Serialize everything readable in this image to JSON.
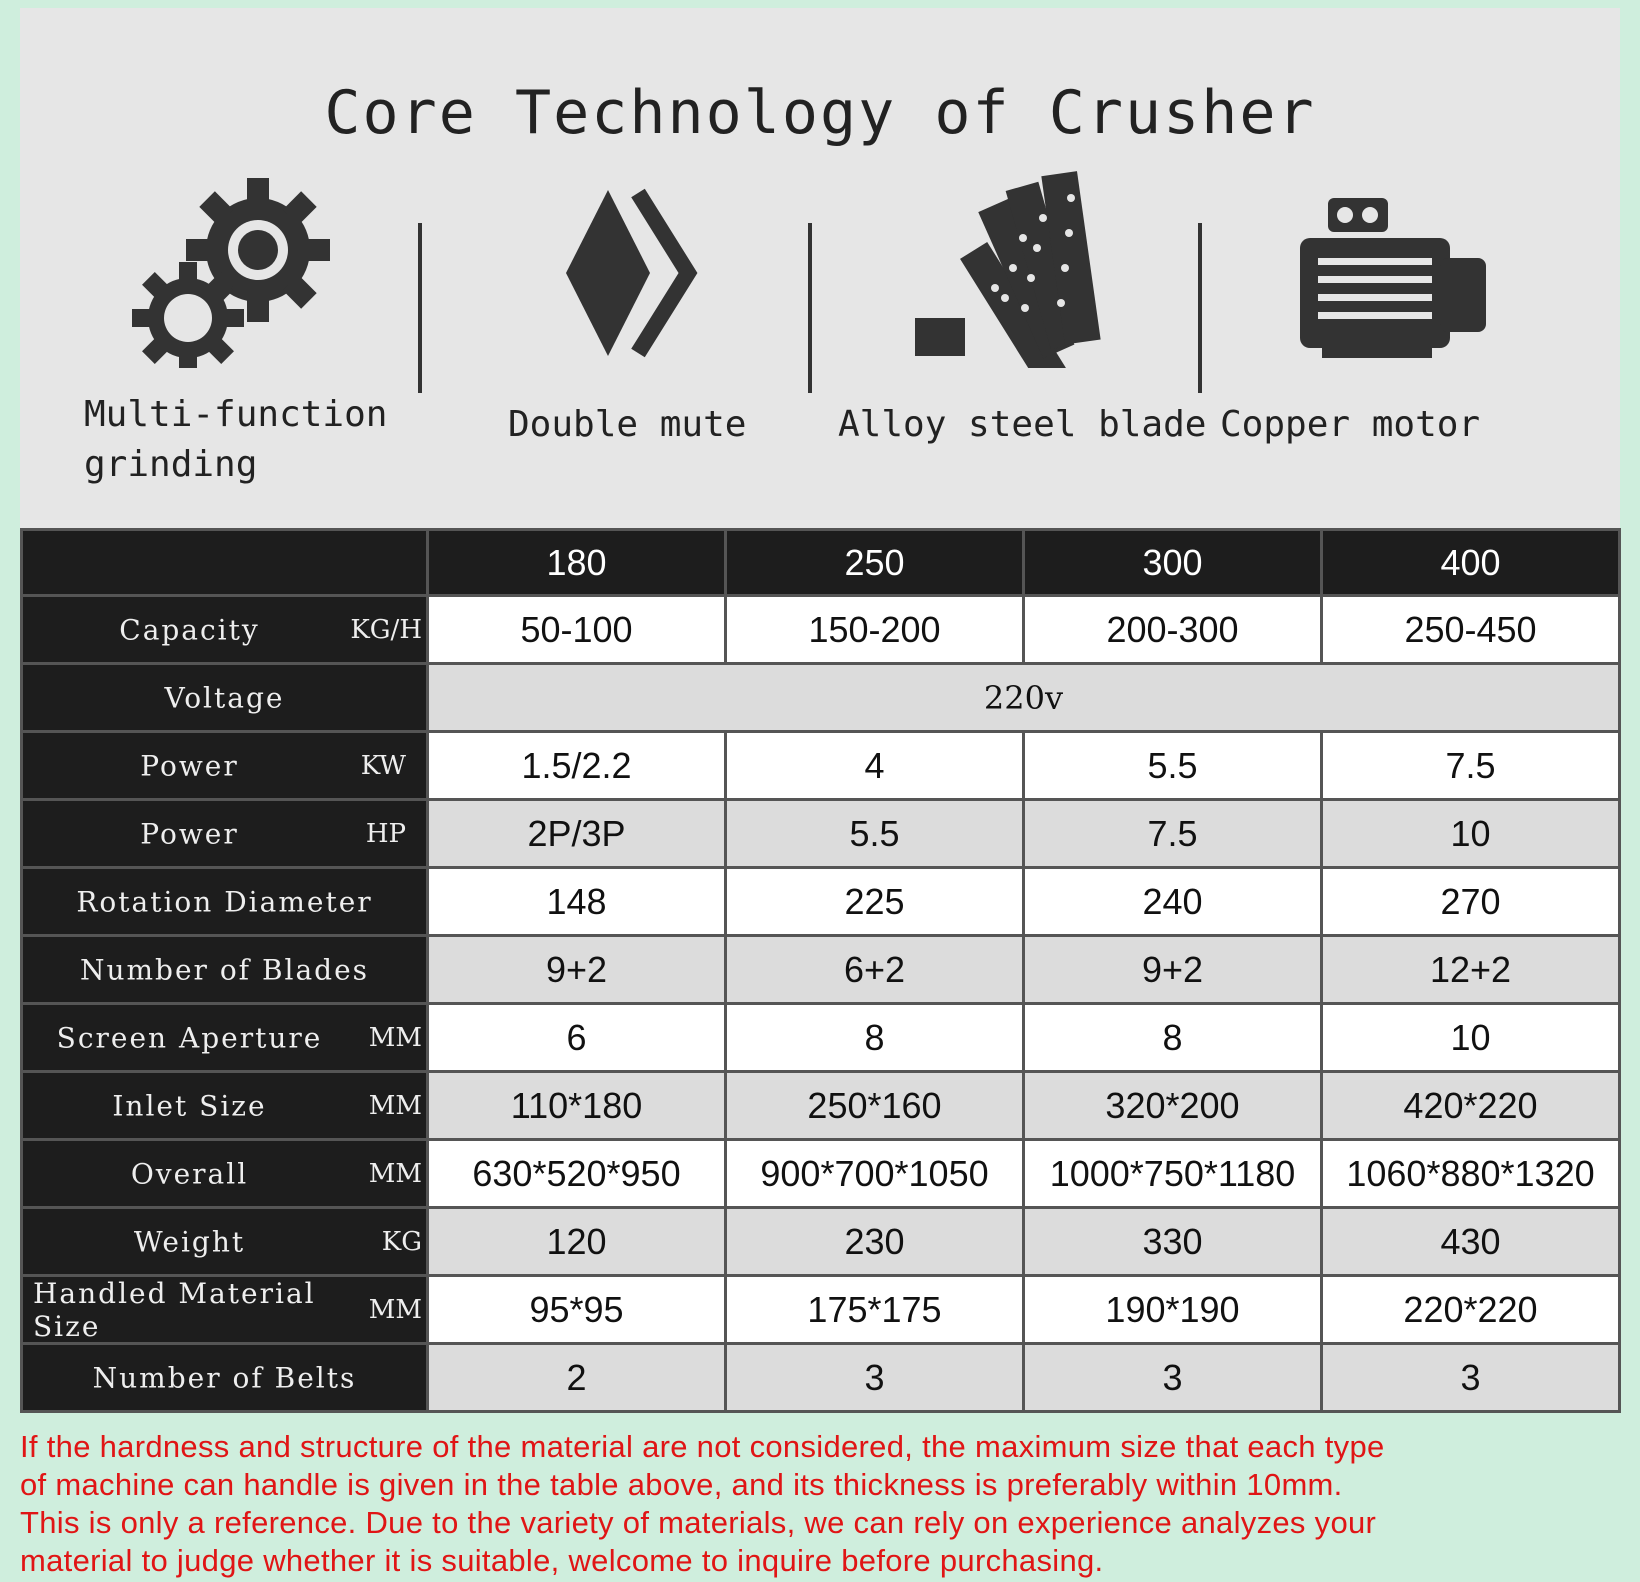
{
  "title": "Core Technology of Crusher",
  "features": [
    {
      "label": "Multi-function\ngrinding",
      "icon": "gears-icon"
    },
    {
      "label": "Double mute",
      "icon": "double-mute-icon"
    },
    {
      "label": "Alloy steel blade",
      "icon": "blades-icon"
    },
    {
      "label": "Copper motor",
      "icon": "motor-icon"
    }
  ],
  "table": {
    "models": [
      "180",
      "250",
      "300",
      "400"
    ],
    "rows": [
      {
        "name": "Capacity",
        "unit": "KG/H",
        "values": [
          "50-100",
          "150-200",
          "200-300",
          "250-450"
        ]
      },
      {
        "name": "Voltage",
        "unit": "",
        "merged": "220v"
      },
      {
        "name": "Power",
        "unit": "KW",
        "values": [
          "1.5/2.2",
          "4",
          "5.5",
          "7.5"
        ]
      },
      {
        "name": "Power",
        "unit": "HP",
        "values": [
          "2P/3P",
          "5.5",
          "7.5",
          "10"
        ]
      },
      {
        "name": "Rotation Diameter",
        "unit": "",
        "values": [
          "148",
          "225",
          "240",
          "270"
        ]
      },
      {
        "name": "Number of Blades",
        "unit": "",
        "values": [
          "9+2",
          "6+2",
          "9+2",
          "12+2"
        ]
      },
      {
        "name": "Screen Aperture",
        "unit": "MM",
        "values": [
          "6",
          "8",
          "8",
          "10"
        ]
      },
      {
        "name": "Inlet Size",
        "unit": "MM",
        "values": [
          "110*180",
          "250*160",
          "320*200",
          "420*220"
        ]
      },
      {
        "name": "Overall",
        "unit": "MM",
        "values": [
          "630*520*950",
          "900*700*1050",
          "1000*750*1180",
          "1060*880*1320"
        ]
      },
      {
        "name": "Weight",
        "unit": "KG",
        "values": [
          "120",
          "230",
          "330",
          "430"
        ]
      },
      {
        "name": "Handled Material Size",
        "unit": "MM",
        "values": [
          "95*95",
          "175*175",
          "190*190",
          "220*220"
        ]
      },
      {
        "name": "Number of Belts",
        "unit": "",
        "values": [
          "2",
          "3",
          "3",
          "3"
        ]
      }
    ]
  },
  "note": [
    "If the hardness and structure of the material are not considered, the maximum size that each type",
    "of machine can handle is given in the table above, and its thickness is preferably within 10mm.",
    "This is only a reference. Due to the variety of materials, we can rely on experience analyzes your",
    "material to judge whether it is suitable, welcome to inquire before purchasing."
  ],
  "colors": {
    "header_bg": "#1d1d1d",
    "note_text": "#e01515",
    "panel_bg": "#e6e6e6",
    "icon": "#333333"
  }
}
